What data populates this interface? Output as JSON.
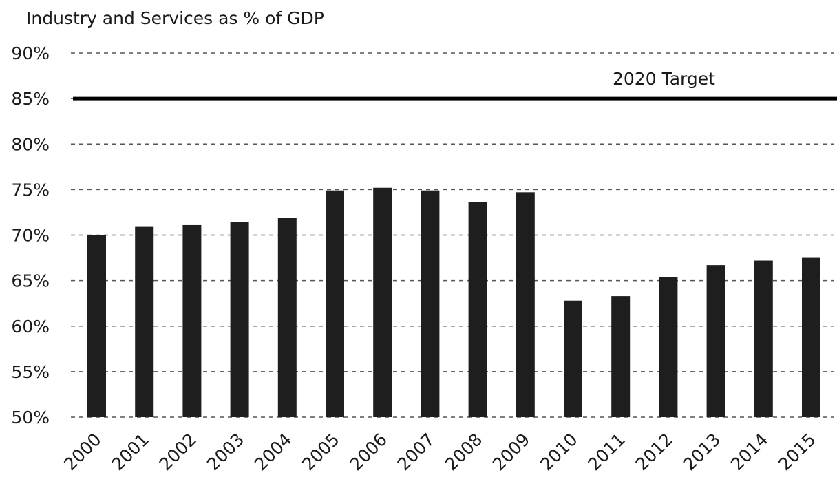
{
  "chart_data": {
    "type": "bar",
    "title": "Industry and Services as % of GDP",
    "categories": [
      "2000",
      "2001",
      "2002",
      "2003",
      "2004",
      "2005",
      "2006",
      "2007",
      "2008",
      "2009",
      "2010",
      "2011",
      "2012",
      "2013",
      "2014",
      "2015"
    ],
    "values": [
      70.0,
      70.9,
      71.1,
      71.4,
      71.9,
      74.9,
      75.2,
      74.9,
      73.6,
      74.7,
      62.8,
      63.3,
      65.4,
      66.7,
      67.2,
      67.5
    ],
    "ylim": [
      50,
      90
    ],
    "yticks": [
      50,
      55,
      60,
      65,
      70,
      75,
      80,
      85,
      90
    ],
    "ytick_labels": [
      "50%",
      "55%",
      "60%",
      "65%",
      "70%",
      "75%",
      "80%",
      "85%",
      "90%"
    ],
    "grid": true,
    "target": {
      "value": 85,
      "label": "2020 Target"
    },
    "bar_color": "#1e1e1e"
  }
}
